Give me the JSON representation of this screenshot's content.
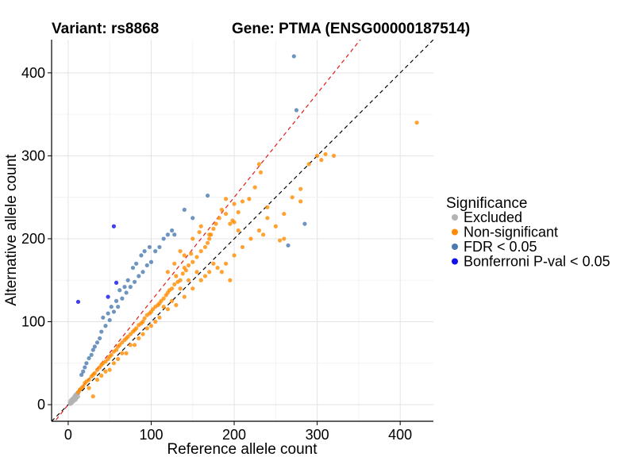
{
  "chart_data": {
    "type": "scatter",
    "title_left": "Variant: rs8868",
    "title_right": "Gene: PTMA (ENSG00000187514)",
    "xlabel": "Reference allele count",
    "ylabel": "Alternative allele count",
    "xlim": [
      -20,
      440
    ],
    "ylim": [
      -20,
      440
    ],
    "xticks": [
      0,
      100,
      200,
      300,
      400
    ],
    "yticks": [
      0,
      100,
      200,
      300,
      400
    ],
    "grid": true,
    "reference_lines": [
      {
        "name": "identity",
        "slope": 1,
        "intercept": 0,
        "color": "#000000",
        "style": "dashed"
      },
      {
        "name": "fitted",
        "slope": 1.25,
        "intercept": 0,
        "color": "#e41a1c",
        "style": "dashed"
      }
    ],
    "legend": {
      "title": "Significance",
      "position": "right",
      "entries": [
        {
          "label": "Excluded",
          "color": "#b3b3b3"
        },
        {
          "label": "Non-significant",
          "color": "#ff8c00"
        },
        {
          "label": "FDR < 0.05",
          "color": "#4a7ab0"
        },
        {
          "label": "Bonferroni P-val < 0.05",
          "color": "#1010ee"
        }
      ]
    },
    "series": [
      {
        "name": "Excluded",
        "color": "#b3b3b3",
        "points": [
          [
            2,
            3
          ],
          [
            3,
            5
          ],
          [
            4,
            2
          ],
          [
            5,
            7
          ],
          [
            6,
            4
          ],
          [
            7,
            9
          ],
          [
            8,
            6
          ],
          [
            9,
            12
          ],
          [
            10,
            8
          ],
          [
            11,
            14
          ],
          [
            12,
            10
          ],
          [
            13,
            16
          ],
          [
            5,
            3
          ],
          [
            7,
            5
          ],
          [
            9,
            6
          ],
          [
            11,
            9
          ],
          [
            3,
            1
          ],
          [
            6,
            8
          ],
          [
            8,
            11
          ],
          [
            10,
            13
          ],
          [
            4,
            6
          ],
          [
            12,
            15
          ],
          [
            14,
            18
          ],
          [
            2,
            1
          ]
        ]
      },
      {
        "name": "Non-significant",
        "color": "#ff8c00",
        "points": [
          [
            420,
            340
          ],
          [
            300,
            300
          ],
          [
            310,
            302
          ],
          [
            320,
            300
          ],
          [
            305,
            295
          ],
          [
            290,
            290
          ],
          [
            280,
            260
          ],
          [
            270,
            250
          ],
          [
            260,
            200
          ],
          [
            255,
            198
          ],
          [
            250,
            215
          ],
          [
            240,
            238
          ],
          [
            235,
            205
          ],
          [
            230,
            290
          ],
          [
            232,
            280
          ],
          [
            225,
            262
          ],
          [
            218,
            248
          ],
          [
            210,
            245
          ],
          [
            205,
            232
          ],
          [
            200,
            242
          ],
          [
            198,
            222
          ],
          [
            195,
            218
          ],
          [
            190,
            248
          ],
          [
            185,
            235
          ],
          [
            182,
            225
          ],
          [
            178,
            218
          ],
          [
            175,
            212
          ],
          [
            172,
            205
          ],
          [
            170,
            200
          ],
          [
            168,
            195
          ],
          [
            165,
            190
          ],
          [
            160,
            185
          ],
          [
            158,
            208
          ],
          [
            155,
            178
          ],
          [
            150,
            172
          ],
          [
            148,
            182
          ],
          [
            145,
            168
          ],
          [
            142,
            162
          ],
          [
            140,
            165
          ],
          [
            138,
            158
          ],
          [
            135,
            150
          ],
          [
            132,
            148
          ],
          [
            130,
            155
          ],
          [
            128,
            145
          ],
          [
            125,
            140
          ],
          [
            122,
            138
          ],
          [
            120,
            135
          ],
          [
            118,
            132
          ],
          [
            115,
            128
          ],
          [
            112,
            125
          ],
          [
            110,
            122
          ],
          [
            108,
            120
          ],
          [
            105,
            118
          ],
          [
            102,
            115
          ],
          [
            100,
            112
          ],
          [
            98,
            110
          ],
          [
            95,
            108
          ],
          [
            92,
            104
          ],
          [
            90,
            100
          ],
          [
            88,
            98
          ],
          [
            85,
            96
          ],
          [
            82,
            92
          ],
          [
            80,
            90
          ],
          [
            78,
            88
          ],
          [
            75,
            85
          ],
          [
            72,
            82
          ],
          [
            70,
            80
          ],
          [
            68,
            78
          ],
          [
            65,
            75
          ],
          [
            62,
            72
          ],
          [
            60,
            70
          ],
          [
            58,
            66
          ],
          [
            55,
            64
          ],
          [
            52,
            60
          ],
          [
            50,
            58
          ],
          [
            48,
            55
          ],
          [
            45,
            52
          ],
          [
            42,
            50
          ],
          [
            40,
            48
          ],
          [
            38,
            45
          ],
          [
            35,
            42
          ],
          [
            32,
            38
          ],
          [
            30,
            36
          ],
          [
            28,
            34
          ],
          [
            25,
            30
          ],
          [
            22,
            28
          ],
          [
            20,
            26
          ],
          [
            18,
            22
          ],
          [
            16,
            20
          ],
          [
            14,
            18
          ],
          [
            12,
            15
          ],
          [
            30,
            10
          ],
          [
            25,
            20
          ],
          [
            40,
            35
          ],
          [
            50,
            42
          ],
          [
            60,
            55
          ],
          [
            70,
            62
          ],
          [
            80,
            72
          ],
          [
            90,
            85
          ],
          [
            100,
            95
          ],
          [
            110,
            105
          ],
          [
            120,
            115
          ],
          [
            130,
            120
          ],
          [
            140,
            130
          ],
          [
            150,
            140
          ],
          [
            160,
            150
          ],
          [
            170,
            160
          ],
          [
            180,
            165
          ],
          [
            190,
            170
          ],
          [
            200,
            180
          ],
          [
            210,
            190
          ],
          [
            220,
            200
          ],
          [
            230,
            210
          ],
          [
            240,
            225
          ],
          [
            260,
            230
          ],
          [
            280,
            245
          ],
          [
            195,
            150
          ],
          [
            185,
            160
          ],
          [
            175,
            170
          ],
          [
            165,
            155
          ],
          [
            155,
            160
          ],
          [
            145,
            150
          ],
          [
            135,
            140
          ],
          [
            125,
            125
          ],
          [
            115,
            118
          ],
          [
            105,
            100
          ],
          [
            95,
            92
          ],
          [
            85,
            80
          ],
          [
            75,
            72
          ],
          [
            65,
            62
          ],
          [
            55,
            50
          ],
          [
            45,
            40
          ],
          [
            35,
            30
          ],
          [
            120,
            160
          ],
          [
            128,
            170
          ],
          [
            135,
            185
          ],
          [
            140,
            180
          ],
          [
            150,
            200
          ],
          [
            160,
            215
          ],
          [
            170,
            205
          ],
          [
            190,
            230
          ],
          [
            200,
            220
          ],
          [
            205,
            210
          ]
        ]
      },
      {
        "name": "FDR < 0.05",
        "color": "#4a7ab0",
        "points": [
          [
            272,
            420
          ],
          [
            275,
            355
          ],
          [
            285,
            218
          ],
          [
            265,
            192
          ],
          [
            168,
            252
          ],
          [
            150,
            225
          ],
          [
            140,
            235
          ],
          [
            128,
            205
          ],
          [
            125,
            210
          ],
          [
            110,
            190
          ],
          [
            105,
            185
          ],
          [
            100,
            172
          ],
          [
            95,
            168
          ],
          [
            90,
            160
          ],
          [
            85,
            155
          ],
          [
            80,
            148
          ],
          [
            75,
            142
          ],
          [
            70,
            135
          ],
          [
            65,
            128
          ],
          [
            60,
            118
          ],
          [
            55,
            112
          ],
          [
            50,
            102
          ],
          [
            45,
            95
          ],
          [
            40,
            88
          ],
          [
            38,
            80
          ],
          [
            35,
            75
          ],
          [
            32,
            70
          ],
          [
            30,
            66
          ],
          [
            28,
            60
          ],
          [
            25,
            56
          ],
          [
            22,
            50
          ],
          [
            20,
            45
          ],
          [
            18,
            40
          ],
          [
            16,
            36
          ],
          [
            42,
            105
          ],
          [
            48,
            110
          ],
          [
            52,
            118
          ],
          [
            58,
            125
          ],
          [
            62,
            138
          ],
          [
            68,
            142
          ],
          [
            72,
            150
          ],
          [
            78,
            165
          ],
          [
            82,
            170
          ],
          [
            88,
            180
          ],
          [
            92,
            185
          ],
          [
            98,
            190
          ],
          [
            115,
            200
          ],
          [
            120,
            205
          ]
        ]
      },
      {
        "name": "Bonferroni P-val < 0.05",
        "color": "#1010ee",
        "points": [
          [
            12,
            124
          ],
          [
            55,
            215
          ],
          [
            58,
            147
          ],
          [
            48,
            130
          ]
        ]
      }
    ]
  }
}
